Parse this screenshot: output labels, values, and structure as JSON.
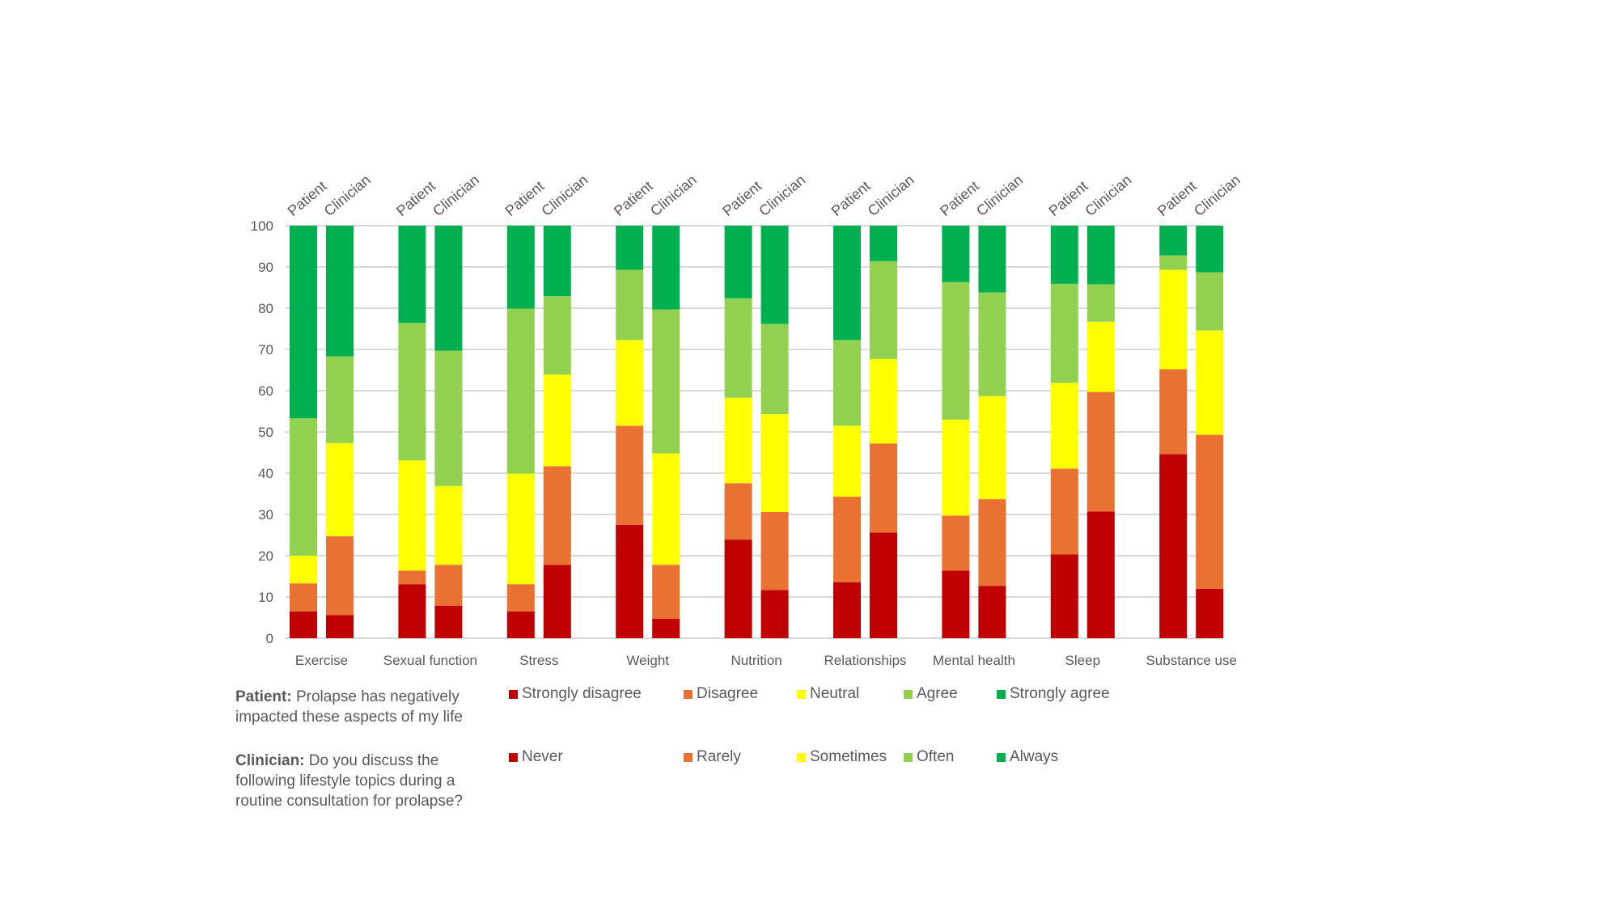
{
  "colors": {
    "level1": "#C00000",
    "level2": "#E97132",
    "level3": "#FFFF00",
    "level4": "#92D050",
    "level5": "#00B050",
    "grid": "#D9D9D9",
    "text": "#595959"
  },
  "notes": {
    "patient_bold": "Patient:",
    "patient_text": " Prolapse has negatively impacted these aspects of my life",
    "clinician_bold": "Clinician:",
    "clinician_text": " Do you discuss the following lifestyle topics during a routine consultation for prolapse?"
  },
  "chart_data": {
    "type": "bar",
    "stacked": true,
    "percent": true,
    "title": "",
    "xlabel": "",
    "ylabel": "",
    "ylim": [
      0,
      100
    ],
    "yticks": [
      0,
      10,
      20,
      30,
      40,
      50,
      60,
      70,
      80,
      90,
      100
    ],
    "grid": true,
    "categories": [
      "Exercise",
      "Sexual function",
      "Stress",
      "Weight",
      "Nutrition",
      "Relationships",
      "Mental health",
      "Sleep",
      "Substance use"
    ],
    "groups": [
      "Patient",
      "Clinician"
    ],
    "legend": {
      "placement": "bottom",
      "patient": [
        "Strongly disagree",
        "Disagree",
        "Neutral",
        "Agree",
        "Strongly agree"
      ],
      "clinician": [
        "Never",
        "Rarely",
        "Sometimes",
        "Often",
        "Always"
      ]
    },
    "series": [
      {
        "group": "Patient",
        "levels": [
          "Strongly disagree",
          "Disagree",
          "Neutral",
          "Agree",
          "Strongly agree"
        ],
        "values": [
          [
            6.5,
            6.8,
            6.7,
            33.3,
            46.7
          ],
          [
            13.1,
            3.3,
            26.7,
            33.3,
            23.6
          ],
          [
            6.5,
            6.6,
            26.8,
            40.0,
            20.1
          ],
          [
            27.5,
            24.0,
            20.8,
            17.0,
            10.7
          ],
          [
            23.9,
            13.7,
            20.7,
            24.1,
            17.6
          ],
          [
            13.6,
            20.7,
            17.2,
            20.8,
            27.7
          ],
          [
            16.4,
            13.3,
            23.3,
            33.3,
            13.7
          ],
          [
            20.3,
            20.8,
            20.8,
            24.0,
            14.1
          ],
          [
            44.6,
            20.6,
            24.1,
            3.5,
            7.2
          ]
        ]
      },
      {
        "group": "Clinician",
        "levels": [
          "Never",
          "Rarely",
          "Sometimes",
          "Often",
          "Always"
        ],
        "values": [
          [
            5.6,
            19.1,
            22.6,
            21.0,
            31.7
          ],
          [
            7.9,
            9.9,
            19.1,
            32.8,
            30.3
          ],
          [
            17.8,
            23.9,
            22.2,
            19.0,
            17.1
          ],
          [
            4.7,
            13.1,
            27.0,
            34.9,
            20.3
          ],
          [
            11.7,
            18.9,
            23.7,
            21.9,
            23.8
          ],
          [
            25.6,
            21.6,
            20.5,
            23.7,
            8.6
          ],
          [
            12.7,
            21.0,
            25.0,
            25.1,
            16.2
          ],
          [
            30.7,
            29.0,
            17.0,
            9.1,
            14.2
          ],
          [
            12.0,
            37.3,
            25.3,
            14.1,
            11.3
          ]
        ]
      }
    ]
  }
}
